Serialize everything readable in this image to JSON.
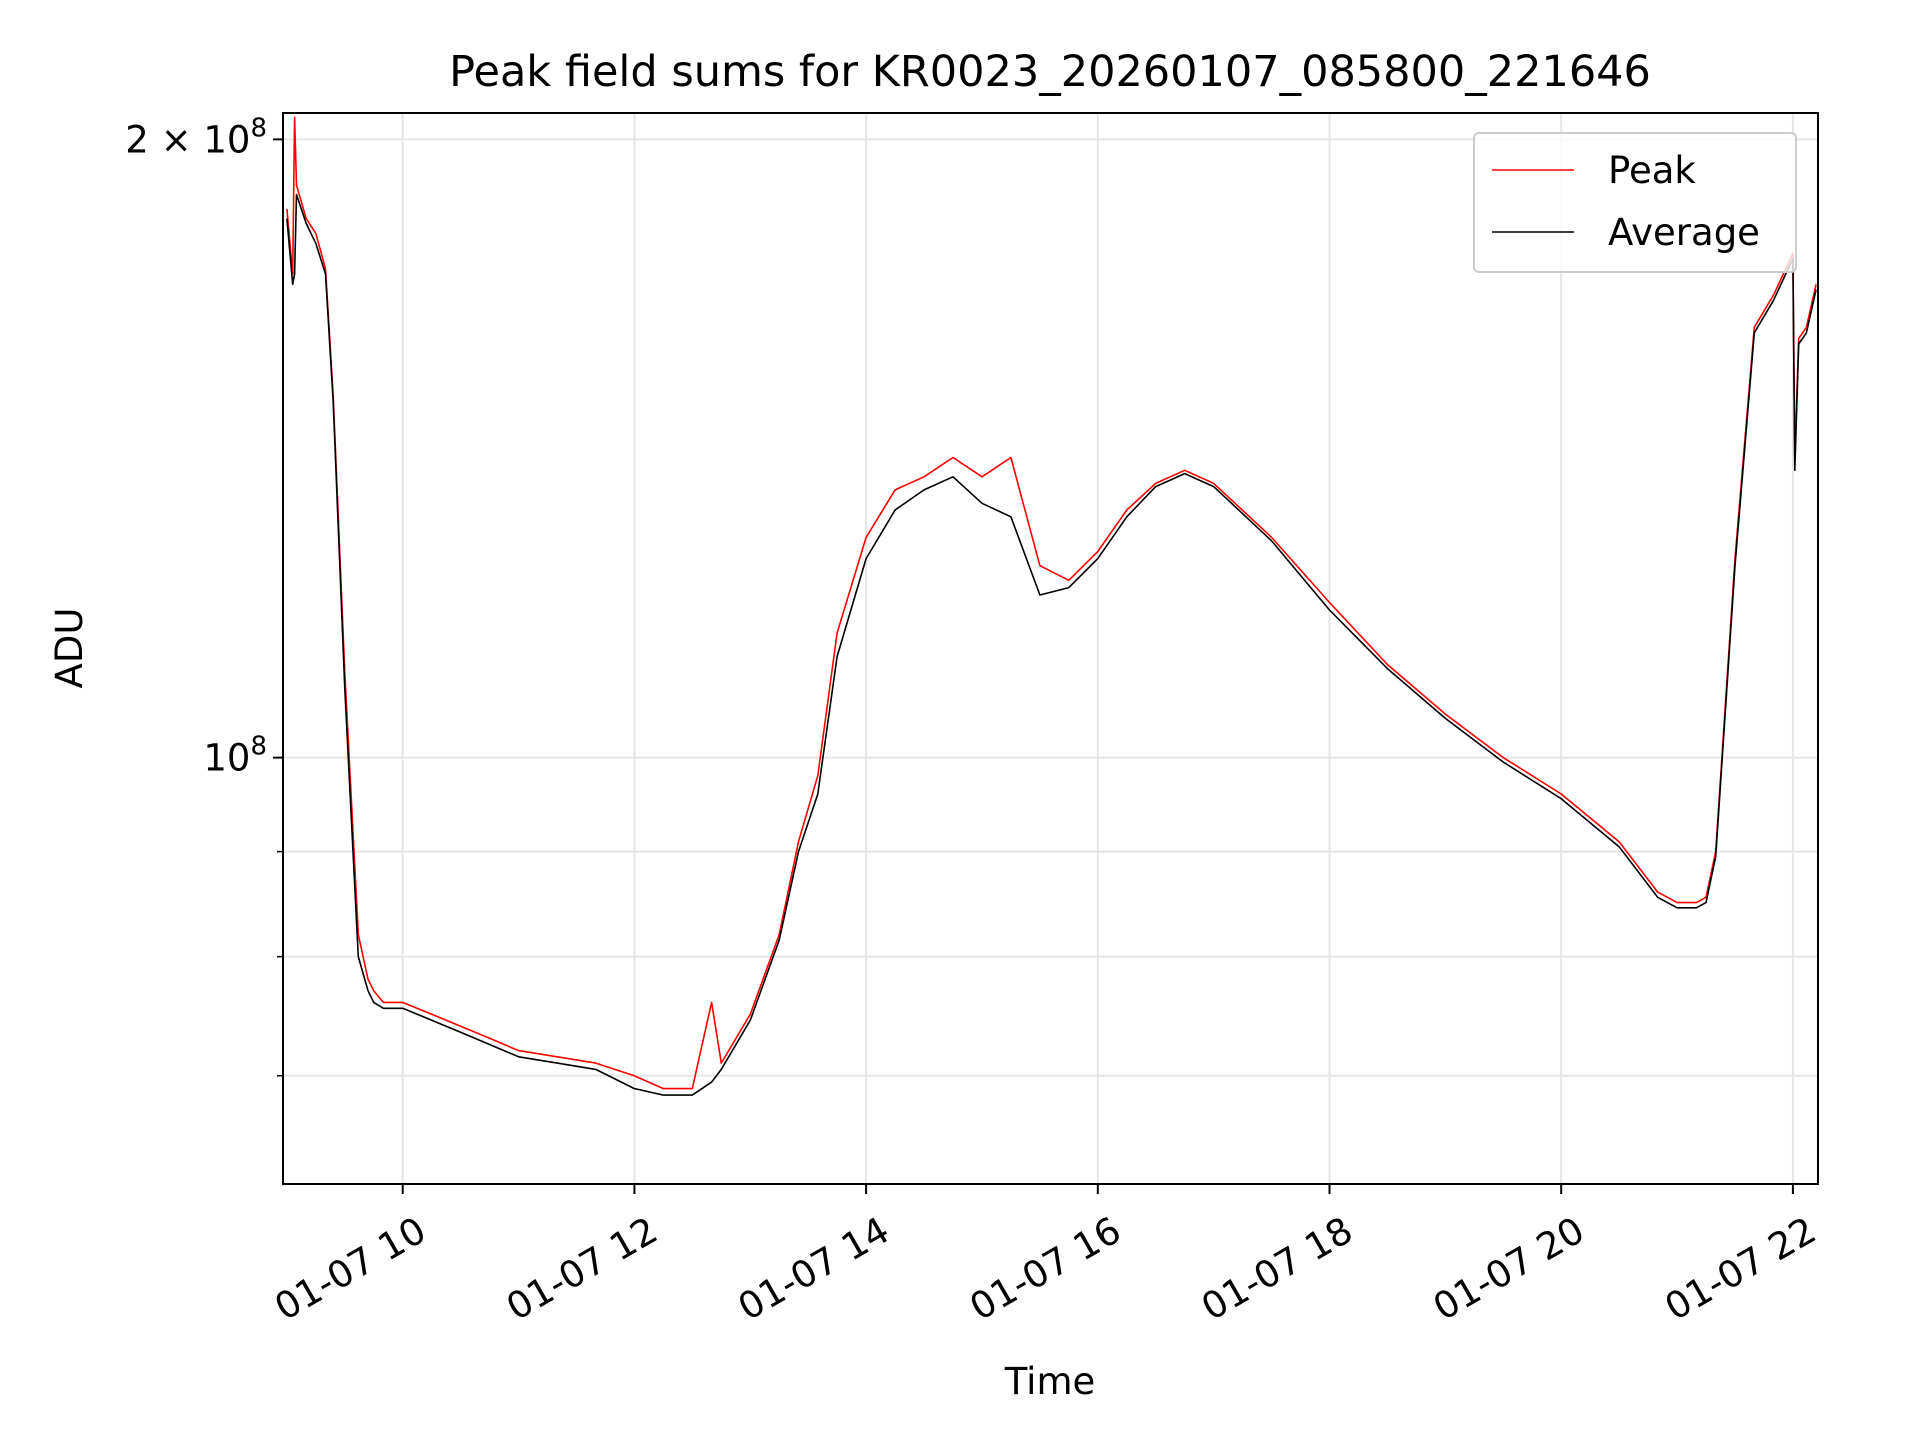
{
  "chart_data": {
    "type": "line",
    "title": "Peak field sums for KR0023_20260107_085800_221646",
    "xlabel": "Time",
    "ylabel": "ADU",
    "y_scale": "log",
    "xlim": [
      "2026-01-07 08:58",
      "2026-01-07 22:13"
    ],
    "ylim": [
      62000000,
      206000000
    ],
    "x_ticks": [
      {
        "value": "2026-01-07 10:00",
        "label": "01-07 10"
      },
      {
        "value": "2026-01-07 12:00",
        "label": "01-07 12"
      },
      {
        "value": "2026-01-07 14:00",
        "label": "01-07 14"
      },
      {
        "value": "2026-01-07 16:00",
        "label": "01-07 16"
      },
      {
        "value": "2026-01-07 18:00",
        "label": "01-07 18"
      },
      {
        "value": "2026-01-07 20:00",
        "label": "01-07 20"
      },
      {
        "value": "2026-01-07 22:00",
        "label": "01-07 22"
      }
    ],
    "y_major_ticks": [
      {
        "value": 100000000,
        "base": "10",
        "exp": "8",
        "mantissa": ""
      },
      {
        "value": 200000000,
        "base": "10",
        "exp": "8",
        "mantissa": "2 × "
      }
    ],
    "y_minor_ticks": [
      70000000,
      80000000,
      90000000
    ],
    "grid": true,
    "legend_position": "top-right",
    "series": [
      {
        "name": "Peak",
        "color": "#ff0000",
        "x": [
          "2026-01-07 09:00",
          "2026-01-07 09:03",
          "2026-01-07 09:04",
          "2026-01-07 09:05",
          "2026-01-07 09:10",
          "2026-01-07 09:15",
          "2026-01-07 09:20",
          "2026-01-07 09:24",
          "2026-01-07 09:30",
          "2026-01-07 09:37",
          "2026-01-07 09:42",
          "2026-01-07 09:45",
          "2026-01-07 09:50",
          "2026-01-07 10:00",
          "2026-01-07 10:15",
          "2026-01-07 10:30",
          "2026-01-07 10:45",
          "2026-01-07 11:00",
          "2026-01-07 11:20",
          "2026-01-07 11:40",
          "2026-01-07 12:00",
          "2026-01-07 12:15",
          "2026-01-07 12:30",
          "2026-01-07 12:40",
          "2026-01-07 12:45",
          "2026-01-07 13:00",
          "2026-01-07 13:15",
          "2026-01-07 13:25",
          "2026-01-07 13:35",
          "2026-01-07 13:45",
          "2026-01-07 14:00",
          "2026-01-07 14:15",
          "2026-01-07 14:30",
          "2026-01-07 14:45",
          "2026-01-07 15:00",
          "2026-01-07 15:15",
          "2026-01-07 15:30",
          "2026-01-07 15:45",
          "2026-01-07 16:00",
          "2026-01-07 16:15",
          "2026-01-07 16:30",
          "2026-01-07 16:45",
          "2026-01-07 17:00",
          "2026-01-07 17:30",
          "2026-01-07 18:00",
          "2026-01-07 18:30",
          "2026-01-07 19:00",
          "2026-01-07 19:30",
          "2026-01-07 20:00",
          "2026-01-07 20:30",
          "2026-01-07 20:50",
          "2026-01-07 21:00",
          "2026-01-07 21:10",
          "2026-01-07 21:15",
          "2026-01-07 21:20",
          "2026-01-07 21:30",
          "2026-01-07 21:40",
          "2026-01-07 21:50",
          "2026-01-07 22:00",
          "2026-01-07 22:01",
          "2026-01-07 22:03",
          "2026-01-07 22:07",
          "2026-01-07 22:12"
        ],
        "y": [
          185000000,
          172000000,
          205000000,
          190000000,
          183000000,
          180000000,
          173000000,
          150000000,
          110000000,
          82000000,
          78000000,
          77000000,
          76000000,
          76000000,
          75000000,
          74000000,
          73000000,
          72000000,
          71500000,
          71000000,
          70000000,
          69000000,
          69000000,
          76000000,
          71000000,
          75000000,
          82000000,
          91000000,
          98000000,
          115000000,
          128000000,
          135000000,
          137000000,
          140000000,
          137000000,
          140000000,
          124000000,
          122000000,
          126000000,
          132000000,
          136000000,
          138000000,
          136000000,
          128000000,
          119000000,
          111000000,
          105000000,
          100000000,
          96000000,
          91000000,
          86000000,
          85000000,
          85000000,
          85500000,
          90000000,
          125000000,
          162000000,
          168000000,
          176000000,
          140000000,
          160000000,
          162000000,
          170000000
        ]
      },
      {
        "name": "Average",
        "color": "#000000",
        "x": [
          "2026-01-07 09:00",
          "2026-01-07 09:03",
          "2026-01-07 09:04",
          "2026-01-07 09:05",
          "2026-01-07 09:10",
          "2026-01-07 09:15",
          "2026-01-07 09:20",
          "2026-01-07 09:24",
          "2026-01-07 09:30",
          "2026-01-07 09:37",
          "2026-01-07 09:42",
          "2026-01-07 09:45",
          "2026-01-07 09:50",
          "2026-01-07 10:00",
          "2026-01-07 10:15",
          "2026-01-07 10:30",
          "2026-01-07 10:45",
          "2026-01-07 11:00",
          "2026-01-07 11:20",
          "2026-01-07 11:40",
          "2026-01-07 12:00",
          "2026-01-07 12:15",
          "2026-01-07 12:30",
          "2026-01-07 12:40",
          "2026-01-07 12:45",
          "2026-01-07 13:00",
          "2026-01-07 13:15",
          "2026-01-07 13:25",
          "2026-01-07 13:35",
          "2026-01-07 13:45",
          "2026-01-07 14:00",
          "2026-01-07 14:15",
          "2026-01-07 14:30",
          "2026-01-07 14:45",
          "2026-01-07 15:00",
          "2026-01-07 15:15",
          "2026-01-07 15:30",
          "2026-01-07 15:45",
          "2026-01-07 16:00",
          "2026-01-07 16:15",
          "2026-01-07 16:30",
          "2026-01-07 16:45",
          "2026-01-07 17:00",
          "2026-01-07 17:30",
          "2026-01-07 18:00",
          "2026-01-07 18:30",
          "2026-01-07 19:00",
          "2026-01-07 19:30",
          "2026-01-07 20:00",
          "2026-01-07 20:30",
          "2026-01-07 20:50",
          "2026-01-07 21:00",
          "2026-01-07 21:10",
          "2026-01-07 21:15",
          "2026-01-07 21:20",
          "2026-01-07 21:30",
          "2026-01-07 21:40",
          "2026-01-07 21:50",
          "2026-01-07 22:00",
          "2026-01-07 22:01",
          "2026-01-07 22:03",
          "2026-01-07 22:07",
          "2026-01-07 22:12"
        ],
        "y": [
          183000000,
          170000000,
          172000000,
          188000000,
          182000000,
          178000000,
          172000000,
          149000000,
          108000000,
          80000000,
          77000000,
          76000000,
          75500000,
          75500000,
          74500000,
          73500000,
          72500000,
          71500000,
          71000000,
          70500000,
          69000000,
          68500000,
          68500000,
          69500000,
          70500000,
          74500000,
          81500000,
          90000000,
          96000000,
          112000000,
          125000000,
          132000000,
          135000000,
          137000000,
          133000000,
          131000000,
          120000000,
          121000000,
          125000000,
          131000000,
          135500000,
          137500000,
          135500000,
          127500000,
          118000000,
          110500000,
          104500000,
          99500000,
          95500000,
          90500000,
          85500000,
          84500000,
          84500000,
          85000000,
          89500000,
          124000000,
          161000000,
          167000000,
          175000000,
          138000000,
          159000000,
          161000000,
          169000000
        ]
      }
    ]
  }
}
